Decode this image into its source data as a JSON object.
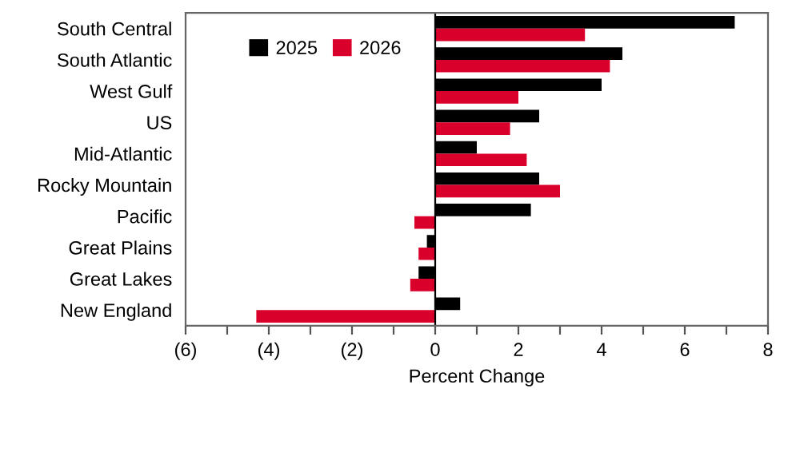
{
  "chart_data": {
    "type": "bar",
    "orientation": "horizontal",
    "xlabel": "Percent Change",
    "categories": [
      "South Central",
      "South Atlantic",
      "West Gulf",
      "US",
      "Mid-Atlantic",
      "Rocky Mountain",
      "Pacific",
      "Great Plains",
      "Great Lakes",
      "New England"
    ],
    "series": [
      {
        "name": "2025",
        "color": "#000000",
        "values": [
          7.2,
          4.5,
          4.0,
          2.5,
          1.0,
          2.5,
          2.3,
          -0.2,
          -0.4,
          0.6
        ]
      },
      {
        "name": "2026",
        "color": "#d9002b",
        "values": [
          3.6,
          4.2,
          2.0,
          1.8,
          2.2,
          3.0,
          -0.5,
          -0.4,
          -0.6,
          -4.3
        ]
      }
    ],
    "xlim": [
      -6,
      8
    ],
    "xticks": [
      {
        "value": -6,
        "label": "(6)"
      },
      {
        "value": -5,
        "label": null
      },
      {
        "value": -4,
        "label": "(4)"
      },
      {
        "value": -3,
        "label": null
      },
      {
        "value": -2,
        "label": "(2)"
      },
      {
        "value": -1,
        "label": null
      },
      0,
      {
        "value": 1,
        "label": null
      },
      2,
      {
        "value": 3,
        "label": null
      },
      4,
      {
        "value": 5,
        "label": null
      },
      6,
      {
        "value": 7,
        "label": null
      },
      8
    ],
    "ref_lines": [
      {
        "axis": "x",
        "value": 0,
        "color": "#000000"
      }
    ],
    "grid": false,
    "legend": "top left"
  }
}
